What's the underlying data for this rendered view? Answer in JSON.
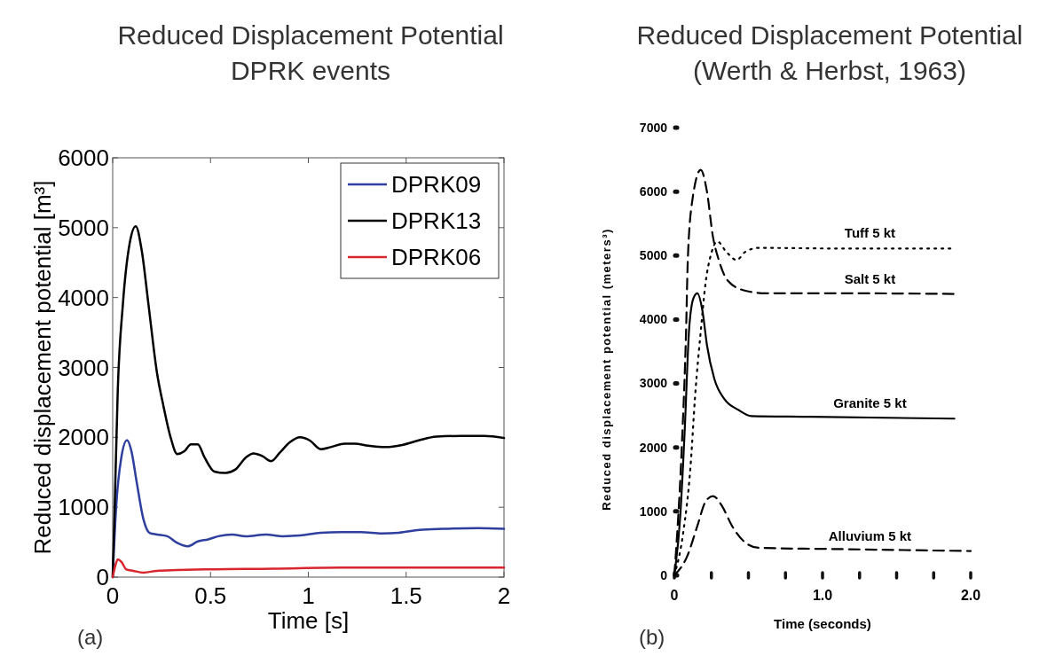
{
  "chart_data": [
    {
      "type": "line",
      "title": "Reduced Displacement Potential",
      "subtitle": "DPRK events",
      "xlabel": "Time [s]",
      "ylabel": "Reduced displacement potential [m³]",
      "xlim": [
        0,
        2
      ],
      "ylim": [
        0,
        6000
      ],
      "xticks": [
        0,
        0.5,
        1,
        1.5,
        2
      ],
      "yticks": [
        0,
        1000,
        2000,
        3000,
        4000,
        5000,
        6000
      ],
      "legend": "top right",
      "annotations": [
        "(a)"
      ],
      "series": [
        {
          "name": "DPRK09",
          "color": "#2e3f9e",
          "x": [
            0,
            0.017,
            0.044,
            0.073,
            0.096,
            0.122,
            0.157,
            0.19,
            0.226,
            0.279,
            0.33,
            0.383,
            0.435,
            0.488,
            0.54,
            0.61,
            0.68,
            0.784,
            0.87,
            0.958,
            1.063,
            1.167,
            1.27,
            1.376,
            1.463,
            1.568,
            1.69,
            1.864,
            2.0
          ],
          "values": [
            0,
            975,
            1710,
            1960,
            1800,
            1370,
            830,
            630,
            610,
            585,
            490,
            440,
            510,
            540,
            585,
            610,
            585,
            610,
            585,
            595,
            635,
            645,
            645,
            625,
            635,
            675,
            690,
            700,
            690
          ]
        },
        {
          "name": "DPRK13",
          "color": "#000000",
          "x": [
            0,
            0.01,
            0.026,
            0.052,
            0.087,
            0.118,
            0.148,
            0.183,
            0.226,
            0.26,
            0.296,
            0.33,
            0.366,
            0.4,
            0.435,
            0.47,
            0.52,
            0.575,
            0.627,
            0.68,
            0.72,
            0.766,
            0.81,
            0.854,
            0.906,
            0.958,
            1.01,
            1.063,
            1.115,
            1.185,
            1.237,
            1.306,
            1.394,
            1.48,
            1.568,
            1.655,
            1.777,
            1.9,
            2.0
          ],
          "values": [
            0,
            975,
            2680,
            3900,
            4780,
            5020,
            4680,
            3900,
            2930,
            2440,
            2000,
            1760,
            1800,
            1900,
            1900,
            1710,
            1510,
            1490,
            1540,
            1710,
            1770,
            1730,
            1660,
            1780,
            1930,
            2000,
            1950,
            1830,
            1860,
            1910,
            1910,
            1880,
            1860,
            1890,
            1960,
            2010,
            2020,
            2020,
            1990
          ]
        },
        {
          "name": "DPRK06",
          "color": "#d7262e",
          "x": [
            0,
            0.014,
            0.026,
            0.044,
            0.07,
            0.105,
            0.157,
            0.226,
            0.33,
            0.47,
            0.82,
            1.167,
            2.0
          ],
          "values": [
            0,
            170,
            255,
            220,
            110,
            90,
            65,
            90,
            100,
            110,
            120,
            135,
            135
          ]
        }
      ]
    },
    {
      "type": "line",
      "title": "Reduced Displacement Potential",
      "subtitle": "(Werth & Herbst, 1963)",
      "xlabel": "Time (seconds)",
      "ylabel": "Reduced displacement potential (meters³)",
      "xlim": [
        0,
        2
      ],
      "ylim": [
        0,
        7000
      ],
      "xticks": [
        0,
        {
          "value": 0.25,
          "label": null
        },
        {
          "value": 0.5,
          "label": null
        },
        {
          "value": 0.75,
          "label": null
        },
        {
          "value": 1,
          "label": "1.0"
        },
        {
          "value": 1.25,
          "label": null
        },
        {
          "value": 1.5,
          "label": null
        },
        {
          "value": 1.75,
          "label": null
        },
        {
          "value": 2,
          "label": "2.0"
        }
      ],
      "yticks": [
        0,
        1000,
        2000,
        3000,
        4000,
        5000,
        6000,
        7000
      ],
      "legend": false,
      "annotations": [
        "(b)"
      ],
      "series": [
        {
          "name": "Tuff 5 kt",
          "color": "#000000",
          "line_style": "dotted",
          "x": [
            0,
            0.06,
            0.11,
            0.14,
            0.18,
            0.21,
            0.25,
            0.29,
            0.35,
            0.42,
            0.48,
            0.57,
            1.12,
            1.89
          ],
          "values": [
            0,
            670,
            1730,
            2800,
            3860,
            4560,
            5040,
            5220,
            5060,
            4930,
            5060,
            5120,
            5110,
            5110
          ]
        },
        {
          "name": "Salt 5 kt",
          "color": "#000000",
          "line_style": "dashed",
          "x": [
            0,
            0.05,
            0.08,
            0.09,
            0.12,
            0.178,
            0.22,
            0.26,
            0.3,
            0.36,
            0.48,
            0.62,
            1.12,
            1.89
          ],
          "values": [
            0,
            2000,
            3900,
            4880,
            5840,
            6340,
            6000,
            5300,
            4930,
            4610,
            4450,
            4410,
            4410,
            4400
          ]
        },
        {
          "name": "Granite 5 kt",
          "color": "#000000",
          "line_style": "solid",
          "x": [
            0,
            0.04,
            0.07,
            0.1,
            0.13,
            0.155,
            0.19,
            0.22,
            0.27,
            0.34,
            0.43,
            0.52,
            0.89,
            1.89
          ],
          "values": [
            0,
            930,
            2270,
            3860,
            4340,
            4410,
            4130,
            3600,
            3070,
            2750,
            2590,
            2490,
            2480,
            2450
          ]
        },
        {
          "name": "Alluvium 5 kt",
          "color": "#000000",
          "line_style": "dashed",
          "x": [
            0,
            0.085,
            0.155,
            0.21,
            0.26,
            0.32,
            0.39,
            0.48,
            0.57,
            1.12,
            2.0
          ],
          "values": [
            0,
            290,
            770,
            1150,
            1240,
            1090,
            770,
            510,
            430,
            410,
            380
          ]
        }
      ]
    }
  ]
}
